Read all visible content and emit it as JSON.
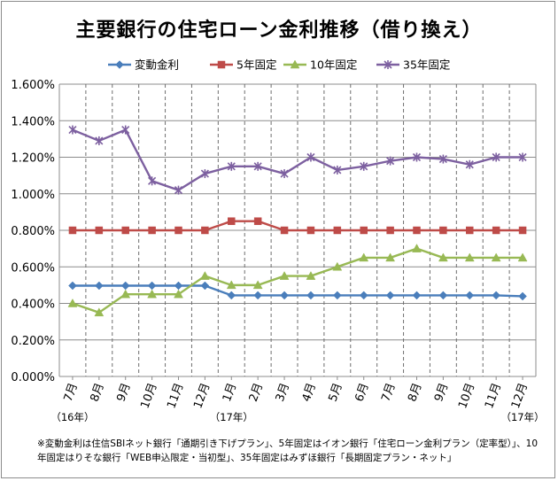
{
  "title": "主要銀行の住宅ローン金利推移（借り換え）",
  "footnote": "※変動金利は住信SBIネット銀行「通期引き下げプラン」、5年固定はイオン銀行「住宅ローン金利プラン（定率型）」、10年固定はりそな銀行「WEB申込限定・当初型」、35年固定はみずほ銀行「長期固定プラン・ネット」",
  "chart_data": {
    "type": "line",
    "title": "主要銀行の住宅ローン金利推移（借り換え）",
    "categories": [
      "7月",
      "8月",
      "9月",
      "10月",
      "11月",
      "12月",
      "1月",
      "2月",
      "3月",
      "4月",
      "5月",
      "6月",
      "7月",
      "8月",
      "9月",
      "10月",
      "11月",
      "12月"
    ],
    "year_labels": [
      {
        "index": 0,
        "text": "（16年）"
      },
      {
        "index": 6,
        "text": "（17年）"
      },
      {
        "index": 17,
        "text": "（17年）"
      }
    ],
    "ylim": [
      0,
      1.6
    ],
    "yticks": [
      "0.000%",
      "0.200%",
      "0.400%",
      "0.600%",
      "0.800%",
      "1.000%",
      "1.200%",
      "1.400%",
      "1.600%"
    ],
    "grid": "horizontal solid, vertical dashed",
    "legend_position": "top",
    "series": [
      {
        "name": "変動金利",
        "color": "#4a7ebb",
        "marker": "diamond",
        "values": [
          0.497,
          0.497,
          0.497,
          0.497,
          0.497,
          0.497,
          0.444,
          0.444,
          0.444,
          0.444,
          0.444,
          0.444,
          0.444,
          0.444,
          0.444,
          0.444,
          0.444,
          0.439
        ]
      },
      {
        "name": "5年固定",
        "color": "#be4b48",
        "marker": "square",
        "values": [
          0.8,
          0.8,
          0.8,
          0.8,
          0.8,
          0.8,
          0.85,
          0.85,
          0.8,
          0.8,
          0.8,
          0.8,
          0.8,
          0.8,
          0.8,
          0.8,
          0.8,
          0.8
        ]
      },
      {
        "name": "10年固定",
        "color": "#98b954",
        "marker": "triangle",
        "values": [
          0.4,
          0.35,
          0.45,
          0.45,
          0.45,
          0.55,
          0.5,
          0.5,
          0.55,
          0.55,
          0.6,
          0.65,
          0.65,
          0.7,
          0.65,
          0.65,
          0.65,
          0.65
        ]
      },
      {
        "name": "35年固定",
        "color": "#7d60a0",
        "marker": "x",
        "values": [
          1.35,
          1.29,
          1.35,
          1.07,
          1.02,
          1.11,
          1.15,
          1.15,
          1.11,
          1.2,
          1.13,
          1.15,
          1.18,
          1.2,
          1.19,
          1.16,
          1.2,
          1.2
        ]
      }
    ]
  }
}
